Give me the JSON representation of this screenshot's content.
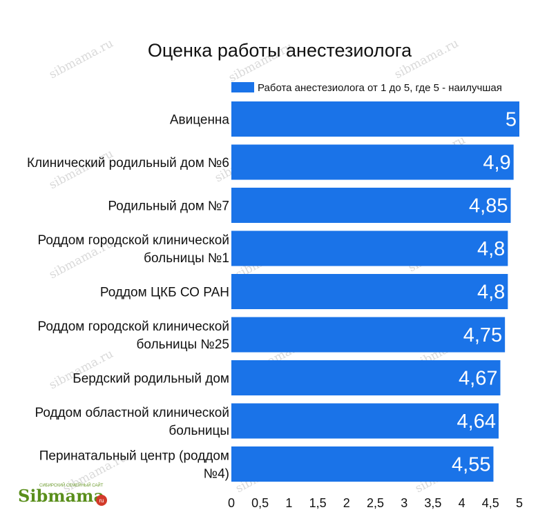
{
  "chart_data": {
    "type": "bar",
    "orientation": "horizontal",
    "title": "Оценка работы анестезиолога",
    "categories": [
      "Авиценна",
      "Клинический родильный дом №6",
      "Родильный дом №7",
      "Роддом городской клинической больницы №1",
      "Роддом ЦКБ СО РАН",
      "Роддом городской клинической больницы №25",
      "Бердский родильный дом",
      "Роддом областной клинической больницы",
      "Перинатальный центр (роддом №4)"
    ],
    "category_lines": [
      [
        "Авиценна"
      ],
      [
        "Клинический родильный дом №6"
      ],
      [
        "Родильный дом №7"
      ],
      [
        "Роддом городской клинической",
        "больницы №1"
      ],
      [
        "Роддом ЦКБ СО РАН"
      ],
      [
        "Роддом городской клинической",
        "больницы №25"
      ],
      [
        "Бердский родильный дом"
      ],
      [
        "Роддом областной клинической",
        "больницы"
      ],
      [
        "Перинатальный центр (роддом",
        "№4)"
      ]
    ],
    "series": [
      {
        "name": "Работа анестезиолога от 1 до 5, где 5 - наилучшая",
        "values": [
          5,
          4.9,
          4.85,
          4.8,
          4.8,
          4.75,
          4.67,
          4.64,
          4.55
        ],
        "value_labels": [
          "5",
          "4,9",
          "4,85",
          "4,8",
          "4,8",
          "4,75",
          "4,67",
          "4,64",
          "4,55"
        ],
        "color": "#1a73e8"
      }
    ],
    "xlim": [
      0,
      5
    ],
    "x_ticks": [
      "0",
      "0,5",
      "1",
      "1,5",
      "2",
      "2,5",
      "3",
      "3,5",
      "4",
      "4,5",
      "5"
    ],
    "legend_position": "top-right",
    "grid": false
  },
  "watermark": "sibmama.ru",
  "logo": {
    "text": "Sibmama",
    "suffix": "ru",
    "tagline": "СИБИРСКИЙ СЕМЕЙНЫЙ САЙТ"
  }
}
